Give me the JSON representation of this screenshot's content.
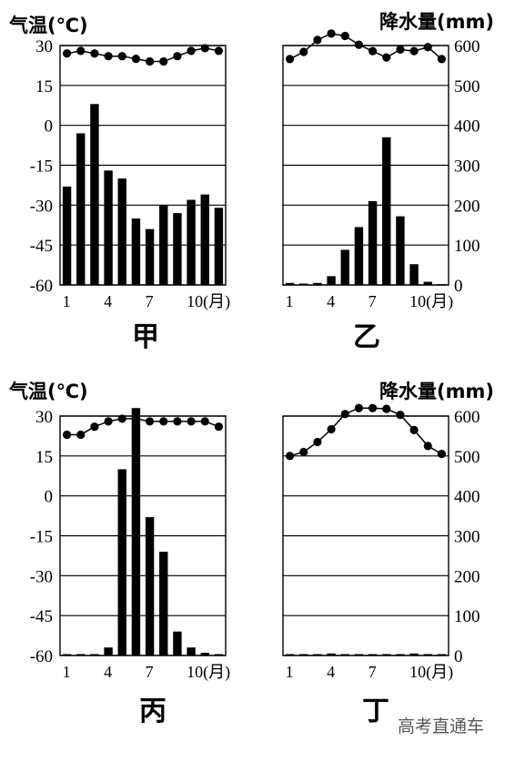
{
  "headers": {
    "temp_axis_title": "气温(℃)",
    "precip_axis_title": "降水量(mm)"
  },
  "watermark": "高考直通车",
  "axes": {
    "temperature": {
      "ticks": [
        30,
        15,
        0,
        -15,
        -30,
        -45,
        -60
      ],
      "ylim": [
        -60,
        30
      ]
    },
    "precipitation": {
      "ticks": [
        600,
        500,
        400,
        300,
        200,
        100,
        0
      ],
      "ylim": [
        0,
        600
      ]
    },
    "x_tick_labels": [
      "1",
      "4",
      "7",
      "10(月)"
    ],
    "x_tick_months": [
      1,
      4,
      7,
      10
    ]
  },
  "colors": {
    "ink": "#000000",
    "background": "#ffffff"
  },
  "chart_data": [
    {
      "type": "bar",
      "label": "甲",
      "categories": [
        1,
        2,
        3,
        4,
        5,
        6,
        7,
        8,
        9,
        10,
        11,
        12
      ],
      "series": [
        {
          "kind": "precipitation_bar",
          "values": [
            -23,
            -3,
            8,
            -17,
            -20,
            -35,
            -39,
            -30,
            -33,
            -28,
            -26,
            -31
          ]
        },
        {
          "kind": "temperature_line",
          "values": [
            27,
            28,
            27,
            26,
            26,
            25,
            24,
            24,
            26,
            28,
            29,
            28
          ]
        }
      ]
    },
    {
      "type": "bar",
      "label": "乙",
      "categories": [
        1,
        2,
        3,
        4,
        5,
        6,
        7,
        8,
        9,
        10,
        11,
        12
      ],
      "series": [
        {
          "kind": "temperature_line",
          "values": [
            566,
            584,
            614,
            630,
            624,
            602,
            586,
            570,
            590,
            586,
            596,
            566
          ]
        },
        {
          "kind": "precipitation_bar",
          "values": [
            5,
            0,
            5,
            22,
            88,
            145,
            210,
            370,
            172,
            52,
            8,
            2
          ]
        }
      ]
    },
    {
      "type": "bar",
      "label": "丙",
      "categories": [
        1,
        2,
        3,
        4,
        5,
        6,
        7,
        8,
        9,
        10,
        11,
        12
      ],
      "series": [
        {
          "kind": "precipitation_bar",
          "values": [
            -60,
            -60,
            -60,
            -57,
            10,
            33,
            -8,
            -21,
            -51,
            -57,
            -59,
            -60
          ]
        },
        {
          "kind": "temperature_line",
          "values": [
            23,
            23,
            26,
            28,
            29,
            29,
            28,
            28,
            28,
            28,
            28,
            26
          ]
        }
      ]
    },
    {
      "type": "bar",
      "label": "丁",
      "categories": [
        1,
        2,
        3,
        4,
        5,
        6,
        7,
        8,
        9,
        10,
        11,
        12
      ],
      "series": [
        {
          "kind": "temperature_line",
          "values": [
            500,
            510,
            535,
            567,
            605,
            620,
            620,
            618,
            603,
            565,
            525,
            505
          ]
        },
        {
          "kind": "precipitation_bar",
          "values": [
            0,
            0,
            0,
            5,
            0,
            0,
            0,
            0,
            0,
            5,
            0,
            0
          ]
        }
      ]
    }
  ]
}
